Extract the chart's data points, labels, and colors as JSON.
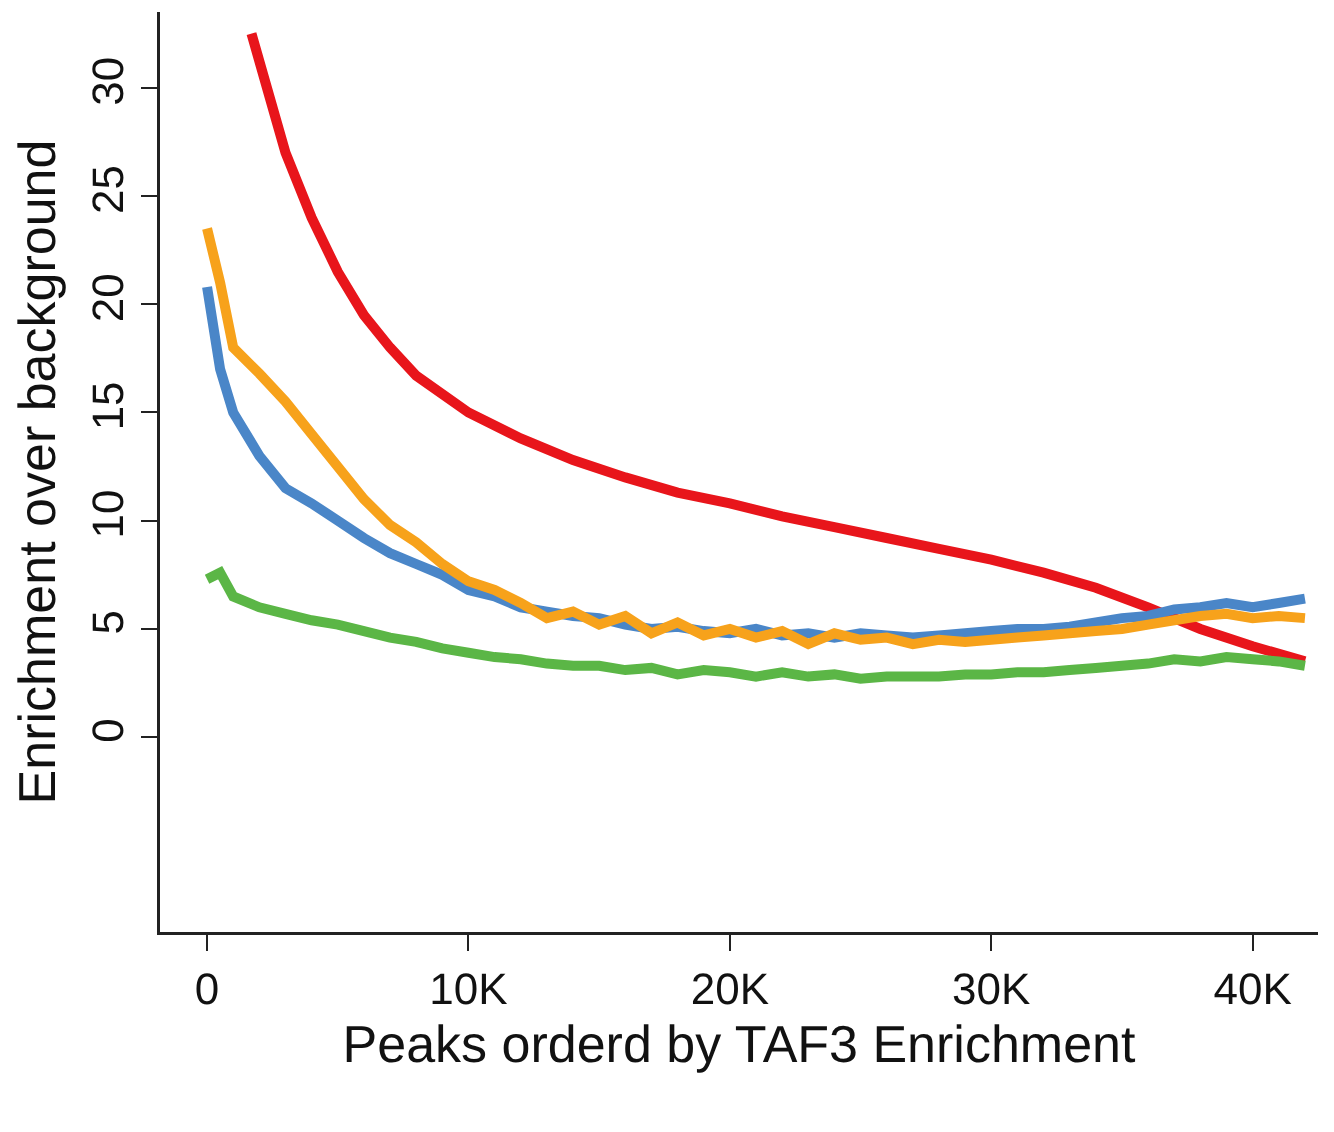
{
  "chart_data": {
    "type": "line",
    "xlabel": "Peaks orderd by TAF3 Enrichment",
    "ylabel": "Enrichment over background",
    "x": [
      0,
      500,
      1000,
      2000,
      3000,
      4000,
      5000,
      6000,
      7000,
      8000,
      9000,
      10000,
      11000,
      12000,
      13000,
      14000,
      15000,
      16000,
      17000,
      18000,
      19000,
      20000,
      21000,
      22000,
      23000,
      24000,
      25000,
      26000,
      27000,
      28000,
      29000,
      30000,
      31000,
      32000,
      33000,
      34000,
      35000,
      36000,
      37000,
      38000,
      39000,
      40000,
      41000,
      42000
    ],
    "series": [
      {
        "color": "#e8151b",
        "x": [
          1700,
          3000,
          4000,
          5000,
          6000,
          7000,
          8000,
          10000,
          12000,
          14000,
          16000,
          18000,
          20000,
          22000,
          24000,
          26000,
          28000,
          30000,
          32000,
          34000,
          36000,
          38000,
          40000,
          42000
        ],
        "values": [
          32.5,
          27,
          24,
          21.5,
          19.5,
          18,
          16.7,
          15,
          13.8,
          12.8,
          12,
          11.3,
          10.8,
          10.2,
          9.7,
          9.2,
          8.7,
          8.2,
          7.6,
          6.9,
          6,
          5,
          4.2,
          3.5
        ]
      },
      {
        "color": "#4a86c8",
        "values": [
          20.8,
          17,
          15,
          13,
          11.5,
          10.8,
          10,
          9.2,
          8.5,
          8,
          7.5,
          6.8,
          6.5,
          6,
          5.8,
          5.6,
          5.5,
          5.2,
          5,
          5.1,
          4.9,
          4.8,
          5,
          4.7,
          4.8,
          4.6,
          4.8,
          4.7,
          4.6,
          4.7,
          4.8,
          4.9,
          5,
          5,
          5.1,
          5.3,
          5.5,
          5.6,
          5.9,
          6,
          6.2,
          6,
          6.2,
          6.4
        ]
      },
      {
        "color": "#f7a21b",
        "values": [
          23.5,
          21,
          18,
          16.8,
          15.5,
          14,
          12.5,
          11,
          9.8,
          9,
          8,
          7.2,
          6.8,
          6.2,
          5.5,
          5.8,
          5.2,
          5.6,
          4.8,
          5.3,
          4.7,
          5,
          4.6,
          4.9,
          4.3,
          4.8,
          4.5,
          4.6,
          4.3,
          4.5,
          4.4,
          4.5,
          4.6,
          4.7,
          4.8,
          4.9,
          5,
          5.2,
          5.4,
          5.6,
          5.7,
          5.5,
          5.6,
          5.5
        ]
      },
      {
        "color": "#5bb646",
        "values": [
          7.3,
          7.6,
          6.5,
          6,
          5.7,
          5.4,
          5.2,
          4.9,
          4.6,
          4.4,
          4.1,
          3.9,
          3.7,
          3.6,
          3.4,
          3.3,
          3.3,
          3.1,
          3.2,
          2.9,
          3.1,
          3,
          2.8,
          3,
          2.8,
          2.9,
          2.7,
          2.8,
          2.8,
          2.8,
          2.9,
          2.9,
          3,
          3,
          3.1,
          3.2,
          3.3,
          3.4,
          3.6,
          3.5,
          3.7,
          3.6,
          3.5,
          3.3
        ]
      }
    ],
    "xlim": [
      -1800,
      42500
    ],
    "xticks": [
      0,
      {
        "value": 10000,
        "label": "10K"
      },
      {
        "value": 20000,
        "label": "20K"
      },
      {
        "value": 30000,
        "label": "30K"
      },
      {
        "value": 40000,
        "label": "40K"
      }
    ],
    "ylim": [
      -9,
      33.5
    ],
    "yticks": [
      0,
      5,
      10,
      15,
      20,
      25,
      30
    ],
    "grid": false,
    "marker": "none",
    "line_style": "solid"
  }
}
